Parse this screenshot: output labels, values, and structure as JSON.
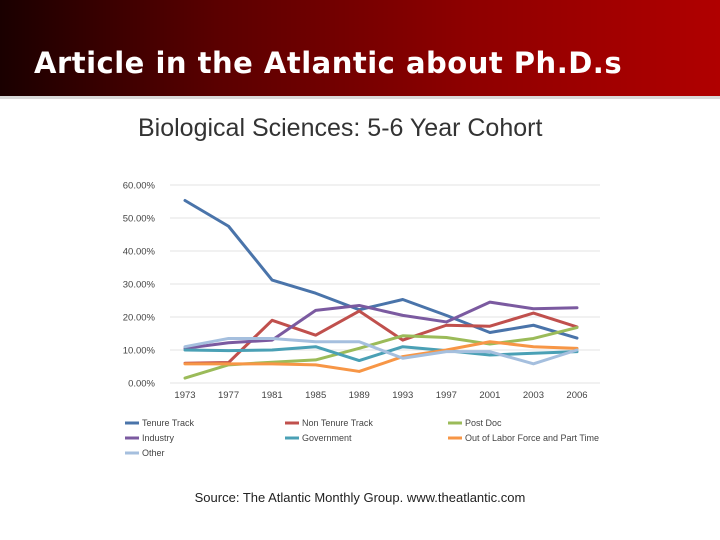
{
  "slide": {
    "title": "Article in the Atlantic about Ph.D.s",
    "source": "Source: The Atlantic Monthly Group. www.theatlantic.com"
  },
  "chart_data": {
    "type": "line",
    "title": "Biological Sciences: 5-6 Year Cohort",
    "xlabel": "",
    "ylabel": "",
    "x": [
      "1973",
      "1977",
      "1981",
      "1985",
      "1989",
      "1993",
      "1997",
      "2001",
      "2003",
      "2006"
    ],
    "ylim": [
      0,
      60
    ],
    "yticks": [
      "0.00%",
      "10.00%",
      "20.00%",
      "30.00%",
      "40.00%",
      "50.00%",
      "60.00%"
    ],
    "grid": true,
    "legend_position": "bottom",
    "series": [
      {
        "name": "Tenure Track",
        "color": "#4a74aa",
        "values": [
          55.3,
          47.5,
          31.2,
          27.2,
          22.2,
          25.3,
          20.5,
          15.3,
          17.5,
          13.6
        ]
      },
      {
        "name": "Non Tenure Track",
        "color": "#c0504d",
        "values": [
          6.0,
          6.2,
          19.0,
          14.5,
          21.8,
          13.0,
          17.5,
          17.2,
          21.2,
          17.0
        ]
      },
      {
        "name": "Post Doc",
        "color": "#9bbb59",
        "values": [
          1.5,
          5.5,
          6.3,
          7.0,
          10.5,
          14.3,
          13.8,
          11.8,
          13.5,
          16.8
        ]
      },
      {
        "name": "Industry",
        "color": "#7b5aa0",
        "values": [
          10.5,
          12.2,
          13.0,
          22.0,
          23.5,
          20.5,
          18.5,
          24.5,
          22.5,
          22.8
        ]
      },
      {
        "name": "Government",
        "color": "#4aa0b5",
        "values": [
          10.0,
          9.8,
          10.0,
          11.0,
          6.8,
          11.0,
          9.8,
          8.5,
          9.0,
          9.5
        ]
      },
      {
        "name": "Out of Labor Force and Part Time",
        "color": "#f79646",
        "values": [
          5.8,
          5.8,
          5.8,
          5.5,
          3.5,
          8.0,
          10.0,
          12.5,
          11.0,
          10.5
        ]
      },
      {
        "name": "Other",
        "color": "#a5bfde",
        "values": [
          11.0,
          13.5,
          13.5,
          12.5,
          12.5,
          7.5,
          9.5,
          9.5,
          5.8,
          10.0
        ]
      }
    ]
  }
}
